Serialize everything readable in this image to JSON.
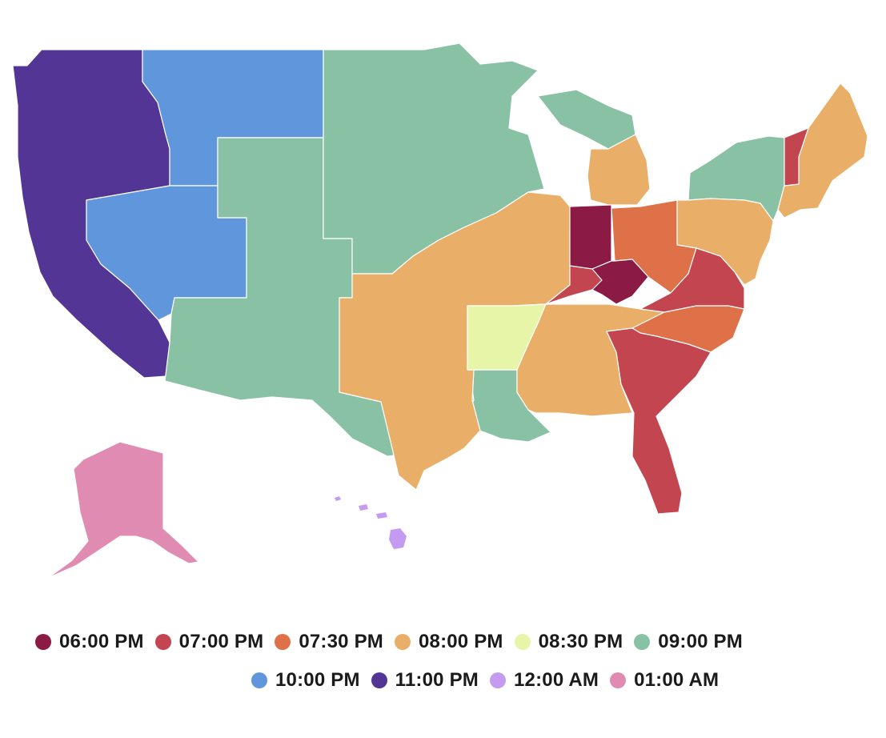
{
  "legend": {
    "row1": [
      {
        "label": "06:00 PM",
        "color": "#8b1a45"
      },
      {
        "label": "07:00 PM",
        "color": "#c2454f"
      },
      {
        "label": "07:30 PM",
        "color": "#de7147"
      },
      {
        "label": "08:00 PM",
        "color": "#e9ae68"
      },
      {
        "label": "08:30 PM",
        "color": "#e7f5a8"
      },
      {
        "label": "09:00 PM",
        "color": "#89c1a5"
      }
    ],
    "row2": [
      {
        "label": "10:00 PM",
        "color": "#6096db"
      },
      {
        "label": "11:00 PM",
        "color": "#523594"
      },
      {
        "label": "12:00 AM",
        "color": "#c49bf0"
      },
      {
        "label": "01:00 AM",
        "color": "#e08bb1"
      }
    ]
  }
}
